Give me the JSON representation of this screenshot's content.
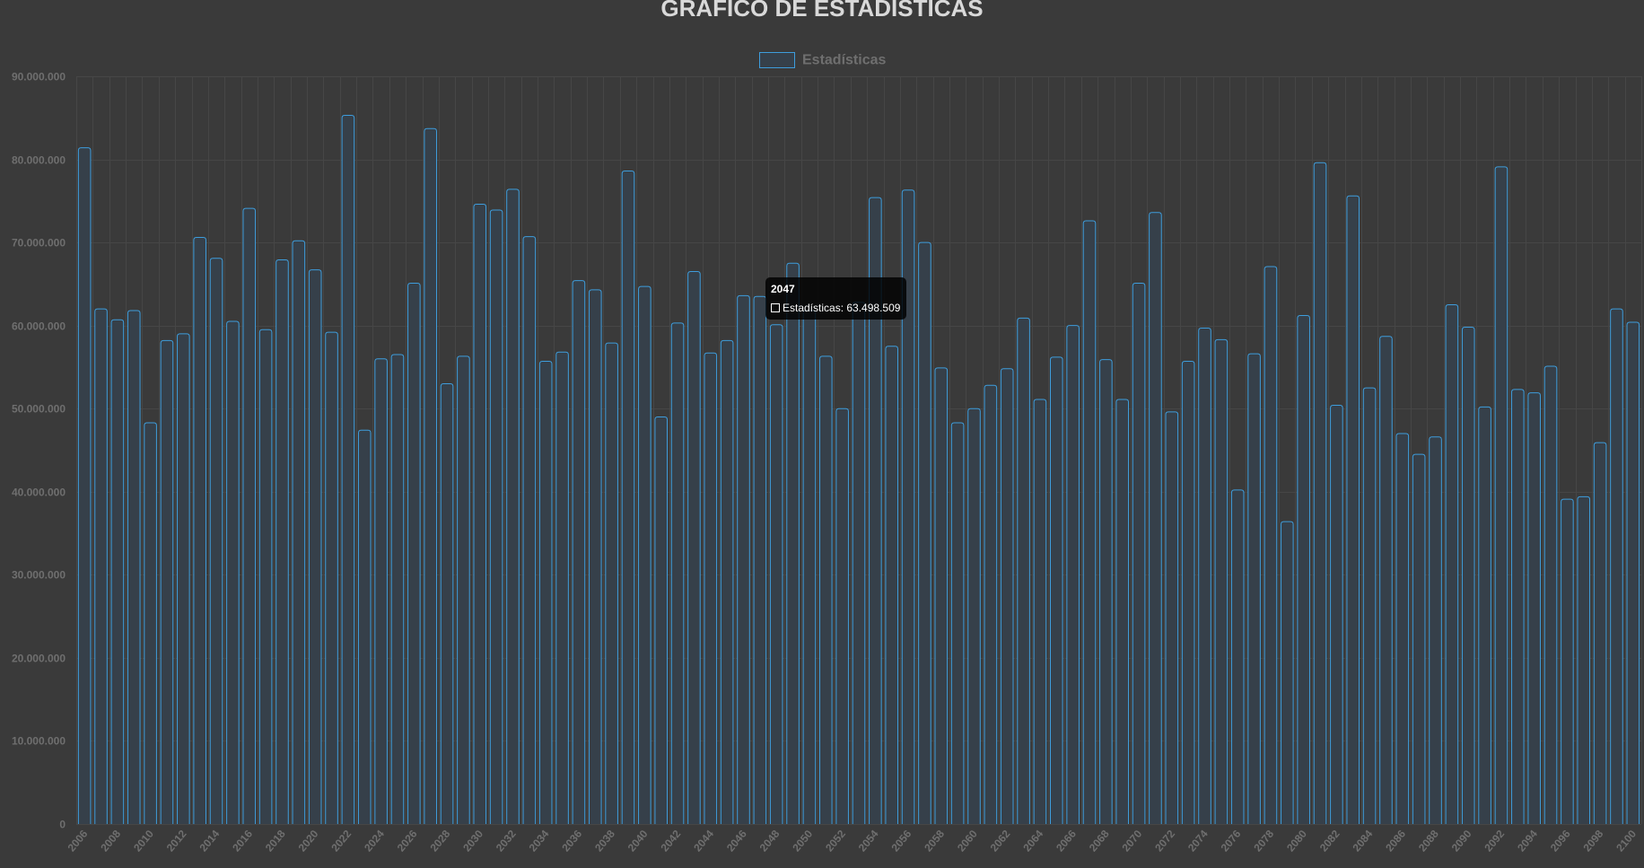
{
  "chart_data": {
    "type": "bar",
    "title": "GRÁFICO DE ESTADÍSTICAS",
    "xlabel": "",
    "ylabel": "",
    "ylim": [
      0,
      90000000
    ],
    "yticks": [
      "0",
      "10.000.000",
      "20.000.000",
      "30.000.000",
      "40.000.000",
      "50.000.000",
      "60.000.000",
      "70.000.000",
      "80.000.000",
      "90.000.000"
    ],
    "ytick_values": [
      0,
      10000000,
      20000000,
      30000000,
      40000000,
      50000000,
      60000000,
      70000000,
      80000000,
      90000000
    ],
    "legend_position": "top-center",
    "grid": true,
    "x": [
      2006,
      2007,
      2008,
      2009,
      2010,
      2011,
      2012,
      2013,
      2014,
      2015,
      2016,
      2017,
      2018,
      2019,
      2020,
      2021,
      2022,
      2023,
      2024,
      2025,
      2026,
      2027,
      2028,
      2029,
      2030,
      2031,
      2032,
      2033,
      2034,
      2035,
      2036,
      2037,
      2038,
      2039,
      2040,
      2041,
      2042,
      2043,
      2044,
      2045,
      2046,
      2047,
      2048,
      2049,
      2050,
      2051,
      2052,
      2053,
      2054,
      2055,
      2056,
      2057,
      2058,
      2059,
      2060,
      2061,
      2062,
      2063,
      2064,
      2065,
      2066,
      2067,
      2068,
      2069,
      2070,
      2071,
      2072,
      2073,
      2074,
      2075,
      2076,
      2077,
      2078,
      2079,
      2080,
      2081,
      2082,
      2083,
      2084,
      2085,
      2086,
      2087,
      2088,
      2089,
      2090,
      2091,
      2092,
      2093,
      2094,
      2095,
      2096,
      2097,
      2098,
      2099,
      2100
    ],
    "series": [
      {
        "name": "Estadísticas",
        "values": [
          81400000,
          62000000,
          60700000,
          61800000,
          48300000,
          58200000,
          59000000,
          70600000,
          68100000,
          60500000,
          74100000,
          59500000,
          67900000,
          70200000,
          66700000,
          59200000,
          85300000,
          47400000,
          56000000,
          56500000,
          65100000,
          83700000,
          53000000,
          56300000,
          74600000,
          73900000,
          76400000,
          70700000,
          55700000,
          56800000,
          65400000,
          64300000,
          57900000,
          78600000,
          64700000,
          49000000,
          60300000,
          66500000,
          56700000,
          58200000,
          63600000,
          63498509,
          60100000,
          67500000,
          61800000,
          56300000,
          50000000,
          62800000,
          75400000,
          57500000,
          76300000,
          70000000,
          54900000,
          48300000,
          50000000,
          52800000,
          54800000,
          60900000,
          51100000,
          56200000,
          60000000,
          72600000,
          55900000,
          51100000,
          65100000,
          73600000,
          49600000,
          55700000,
          59700000,
          58300000,
          40200000,
          56600000,
          67100000,
          36400000,
          61200000,
          79600000,
          50400000,
          75600000,
          52500000,
          58700000,
          47000000,
          44500000,
          46600000,
          62500000,
          59800000,
          50200000,
          79100000,
          52300000,
          51900000,
          55100000,
          39100000,
          39400000,
          45900000,
          62000000,
          60400000
        ]
      }
    ],
    "colors": {
      "bar_fill": "#36404a",
      "bar_border": "#3e9ddc",
      "grid": "#464646",
      "text": "#6f6f6f",
      "title": "#d9d9d9"
    },
    "tooltip": {
      "title": "2047",
      "label": "Estadísticas: 63.498.509"
    }
  }
}
